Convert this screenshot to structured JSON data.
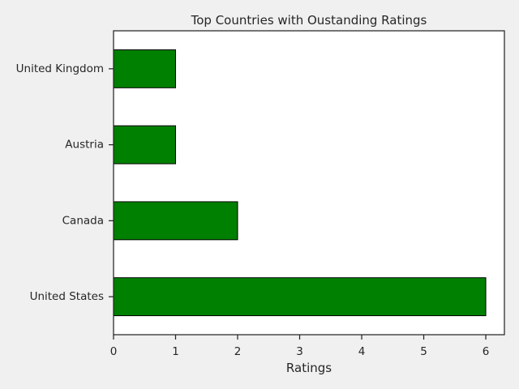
{
  "chart_data": {
    "type": "bar",
    "orientation": "horizontal",
    "title": "Top Countries with Oustanding Ratings",
    "xlabel": "Ratings",
    "ylabel": "",
    "categories": [
      "United States",
      "Canada",
      "Austria",
      "United Kingdom"
    ],
    "values": [
      6,
      2,
      1,
      1
    ],
    "xlim": [
      0,
      6.3
    ],
    "xticks": [
      "0",
      "1",
      "2",
      "3",
      "4",
      "5",
      "6"
    ],
    "grid": false,
    "colors": {
      "bar": "#008000",
      "edge": "#000000",
      "axes_bg": "#ffffff",
      "figure_bg": "#f0f0f0"
    }
  }
}
